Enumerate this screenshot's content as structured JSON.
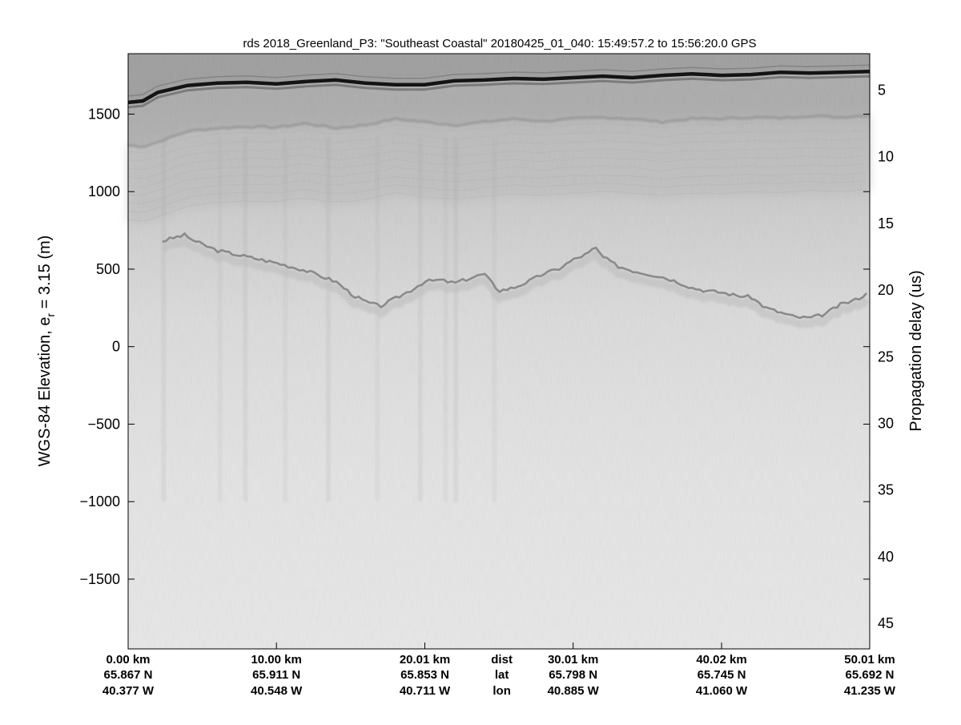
{
  "chart_data": {
    "type": "heatmap",
    "title": "rds 2018_Greenland_P3: \"Southeast Coastal\"  20180425_01_040: 15:49:57.2 to 15:56:20.0 GPS",
    "ylabel_main": "WGS-84 Elevation, e",
    "ylabel_sub": "r",
    "ylabel_rest": " = 3.15 (m)",
    "y2label": "Propagation delay (us)",
    "y_range_m": [
      -1950,
      1890
    ],
    "x_range_km": [
      0,
      50.01
    ],
    "y_ticks": [
      {
        "value": 1500,
        "label": "1500"
      },
      {
        "value": 1000,
        "label": "1000"
      },
      {
        "value": 500,
        "label": "500"
      },
      {
        "value": 0,
        "label": "0"
      },
      {
        "value": -500,
        "label": "−500"
      },
      {
        "value": -1000,
        "label": "−1000"
      },
      {
        "value": -1500,
        "label": "−1500"
      }
    ],
    "y2_ticks": [
      {
        "value": 1660,
        "label": "5"
      },
      {
        "value": 1230,
        "label": "10"
      },
      {
        "value": 800,
        "label": "15"
      },
      {
        "value": 370,
        "label": "20"
      },
      {
        "value": -60,
        "label": "25"
      },
      {
        "value": -490,
        "label": "30"
      },
      {
        "value": -920,
        "label": "35"
      },
      {
        "value": -1350,
        "label": "40"
      },
      {
        "value": -1780,
        "label": "45"
      }
    ],
    "x_ticks": [
      {
        "dist_km": 0.0,
        "dist": "0.00 km",
        "lat": "65.867 N",
        "lon": "40.377 W"
      },
      {
        "dist_km": 10.0,
        "dist": "10.00 km",
        "lat": "65.911 N",
        "lon": "40.548 W"
      },
      {
        "dist_km": 20.01,
        "dist": "20.01 km",
        "lat": "65.853 N",
        "lon": "40.711 W"
      },
      {
        "dist_km": 30.01,
        "dist": "30.01 km",
        "lat": "65.798 N",
        "lon": "40.885 W"
      },
      {
        "dist_km": 40.02,
        "dist": "40.02 km",
        "lat": "65.745 N",
        "lon": "41.060 W"
      },
      {
        "dist_km": 50.01,
        "dist": "50.01 km",
        "lat": "65.692 N",
        "lon": "41.235 W"
      }
    ],
    "row_labels": {
      "dist": "dist",
      "lat": "lat",
      "lon": "lon"
    },
    "surface_m": [
      [
        0,
        1575
      ],
      [
        1,
        1585
      ],
      [
        2,
        1640
      ],
      [
        4,
        1685
      ],
      [
        6,
        1700
      ],
      [
        8,
        1705
      ],
      [
        10,
        1695
      ],
      [
        12,
        1710
      ],
      [
        14,
        1720
      ],
      [
        16,
        1700
      ],
      [
        18,
        1690
      ],
      [
        20,
        1690
      ],
      [
        22,
        1715
      ],
      [
        24,
        1720
      ],
      [
        26,
        1730
      ],
      [
        28,
        1725
      ],
      [
        30,
        1735
      ],
      [
        32,
        1745
      ],
      [
        34,
        1735
      ],
      [
        36,
        1750
      ],
      [
        38,
        1760
      ],
      [
        40,
        1750
      ],
      [
        42,
        1755
      ],
      [
        44,
        1770
      ],
      [
        46,
        1765
      ],
      [
        48,
        1770
      ],
      [
        50.01,
        1775
      ]
    ],
    "internal_layer_m": [
      [
        0,
        1300
      ],
      [
        1,
        1290
      ],
      [
        2,
        1320
      ],
      [
        4,
        1390
      ],
      [
        6,
        1410
      ],
      [
        8,
        1420
      ],
      [
        10,
        1415
      ],
      [
        12,
        1440
      ],
      [
        14,
        1410
      ],
      [
        16,
        1430
      ],
      [
        18,
        1470
      ],
      [
        20,
        1450
      ],
      [
        22,
        1430
      ],
      [
        24,
        1450
      ],
      [
        26,
        1470
      ],
      [
        28,
        1455
      ],
      [
        30,
        1470
      ],
      [
        32,
        1480
      ],
      [
        34,
        1470
      ],
      [
        36,
        1450
      ],
      [
        38,
        1470
      ],
      [
        40,
        1470
      ],
      [
        42,
        1480
      ],
      [
        44,
        1475
      ],
      [
        46,
        1490
      ],
      [
        48,
        1480
      ],
      [
        50.01,
        1495
      ]
    ],
    "bed_m": [
      [
        2.3,
        680
      ],
      [
        3,
        700
      ],
      [
        3.8,
        720
      ],
      [
        4.5,
        680
      ],
      [
        6,
        620
      ],
      [
        8,
        580
      ],
      [
        10,
        540
      ],
      [
        12,
        490
      ],
      [
        14,
        420
      ],
      [
        15.2,
        330
      ],
      [
        16,
        290
      ],
      [
        17,
        260
      ],
      [
        18,
        310
      ],
      [
        19,
        360
      ],
      [
        20,
        420
      ],
      [
        21,
        430
      ],
      [
        22,
        410
      ],
      [
        24,
        470
      ],
      [
        25,
        360
      ],
      [
        26,
        380
      ],
      [
        27,
        420
      ],
      [
        28,
        470
      ],
      [
        29,
        500
      ],
      [
        30,
        560
      ],
      [
        31,
        600
      ],
      [
        31.5,
        640
      ],
      [
        32,
        580
      ],
      [
        33,
        520
      ],
      [
        34,
        490
      ],
      [
        35,
        470
      ],
      [
        36,
        450
      ],
      [
        37,
        420
      ],
      [
        38,
        380
      ],
      [
        39,
        360
      ],
      [
        40,
        350
      ],
      [
        41,
        330
      ],
      [
        42,
        320
      ],
      [
        43,
        250
      ],
      [
        44,
        220
      ],
      [
        45,
        190
      ],
      [
        46,
        185
      ],
      [
        47,
        210
      ],
      [
        48,
        270
      ],
      [
        49,
        300
      ],
      [
        50.01,
        350
      ]
    ],
    "colormap": "gray"
  }
}
